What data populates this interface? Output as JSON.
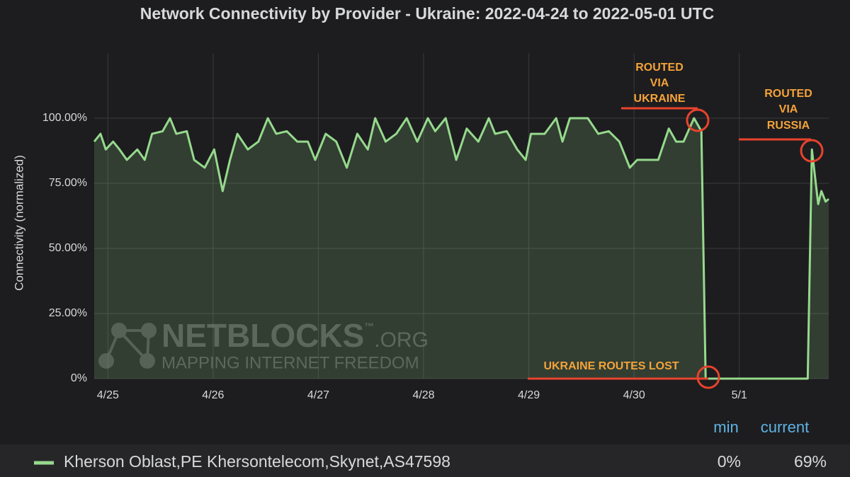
{
  "chart_data": {
    "type": "line",
    "title": "Network Connectivity by Provider - Ukraine: 2022-04-24 to 2022-05-01 UTC",
    "y_label": "Connectivity (normalized)",
    "x": [
      24.87,
      24.93,
      24.98,
      25.05,
      25.11,
      25.18,
      25.28,
      25.35,
      25.42,
      25.52,
      25.59,
      25.65,
      25.75,
      25.82,
      25.92,
      26.01,
      26.09,
      26.16,
      26.23,
      26.33,
      26.43,
      26.52,
      26.6,
      26.7,
      26.8,
      26.9,
      26.97,
      27.07,
      27.17,
      27.27,
      27.37,
      27.47,
      27.54,
      27.64,
      27.74,
      27.84,
      27.94,
      28.04,
      28.11,
      28.21,
      28.31,
      28.41,
      28.52,
      28.62,
      28.68,
      28.79,
      28.89,
      28.97,
      29.02,
      29.15,
      29.26,
      29.32,
      29.39,
      29.56,
      29.66,
      29.76,
      29.86,
      29.96,
      30.03,
      30.23,
      30.33,
      30.4,
      30.47,
      30.57,
      30.64,
      30.68,
      31.65,
      31.69,
      31.75,
      31.78,
      31.82,
      31.85
    ],
    "series": [
      {
        "name": "Kherson Oblast,PE Khersontelecom,Skynet,AS47598",
        "color": "#96d98d",
        "values": [
          91,
          94,
          88,
          91,
          88,
          84,
          88,
          84,
          94,
          95,
          100,
          94,
          95,
          84,
          81,
          88,
          72,
          84,
          94,
          88,
          91,
          100,
          94,
          95,
          91,
          91,
          84,
          94,
          91,
          81,
          94,
          88,
          100,
          91,
          94,
          100,
          91,
          100,
          95,
          100,
          84,
          96,
          91,
          100,
          94,
          95,
          88,
          84,
          94,
          94,
          100,
          91,
          100,
          100,
          94,
          95,
          91,
          81,
          84,
          84,
          96,
          91,
          91,
          100,
          95,
          0,
          0,
          88,
          67,
          72,
          68,
          69
        ],
        "legend_values": [
          "0%",
          "69%"
        ]
      }
    ],
    "legend_columns": [
      "min",
      "current"
    ],
    "xlim": [
      24.87,
      31.85
    ],
    "xticks": [
      {
        "value": 25,
        "label": "4/25"
      },
      {
        "value": 26,
        "label": "4/26"
      },
      {
        "value": 27,
        "label": "4/27"
      },
      {
        "value": 28,
        "label": "4/28"
      },
      {
        "value": 29,
        "label": "4/29"
      },
      {
        "value": 30,
        "label": "4/30"
      },
      {
        "value": 31,
        "label": "5/1"
      }
    ],
    "ylim": [
      0,
      125
    ],
    "yticks": [
      {
        "value": 0,
        "label": "0%"
      },
      {
        "value": 25,
        "label": "25.00%"
      },
      {
        "value": 50,
        "label": "50.00%"
      },
      {
        "value": 75,
        "label": "75.00%"
      },
      {
        "value": 100,
        "label": "100.00%"
      }
    ],
    "grid": true,
    "annotations": [
      {
        "lines": [
          "ROUTED",
          "VIA",
          "UKRAINE"
        ]
      },
      {
        "lines": [
          "ROUTED",
          "VIA",
          "RUSSIA"
        ]
      },
      {
        "lines": [
          "UKRAINE ROUTES LOST"
        ]
      }
    ],
    "watermark": {
      "name": "NETBLOCKS",
      "trademark": "™",
      "suffix": ".ORG",
      "tagline": "MAPPING INTERNET FREEDOM"
    }
  }
}
